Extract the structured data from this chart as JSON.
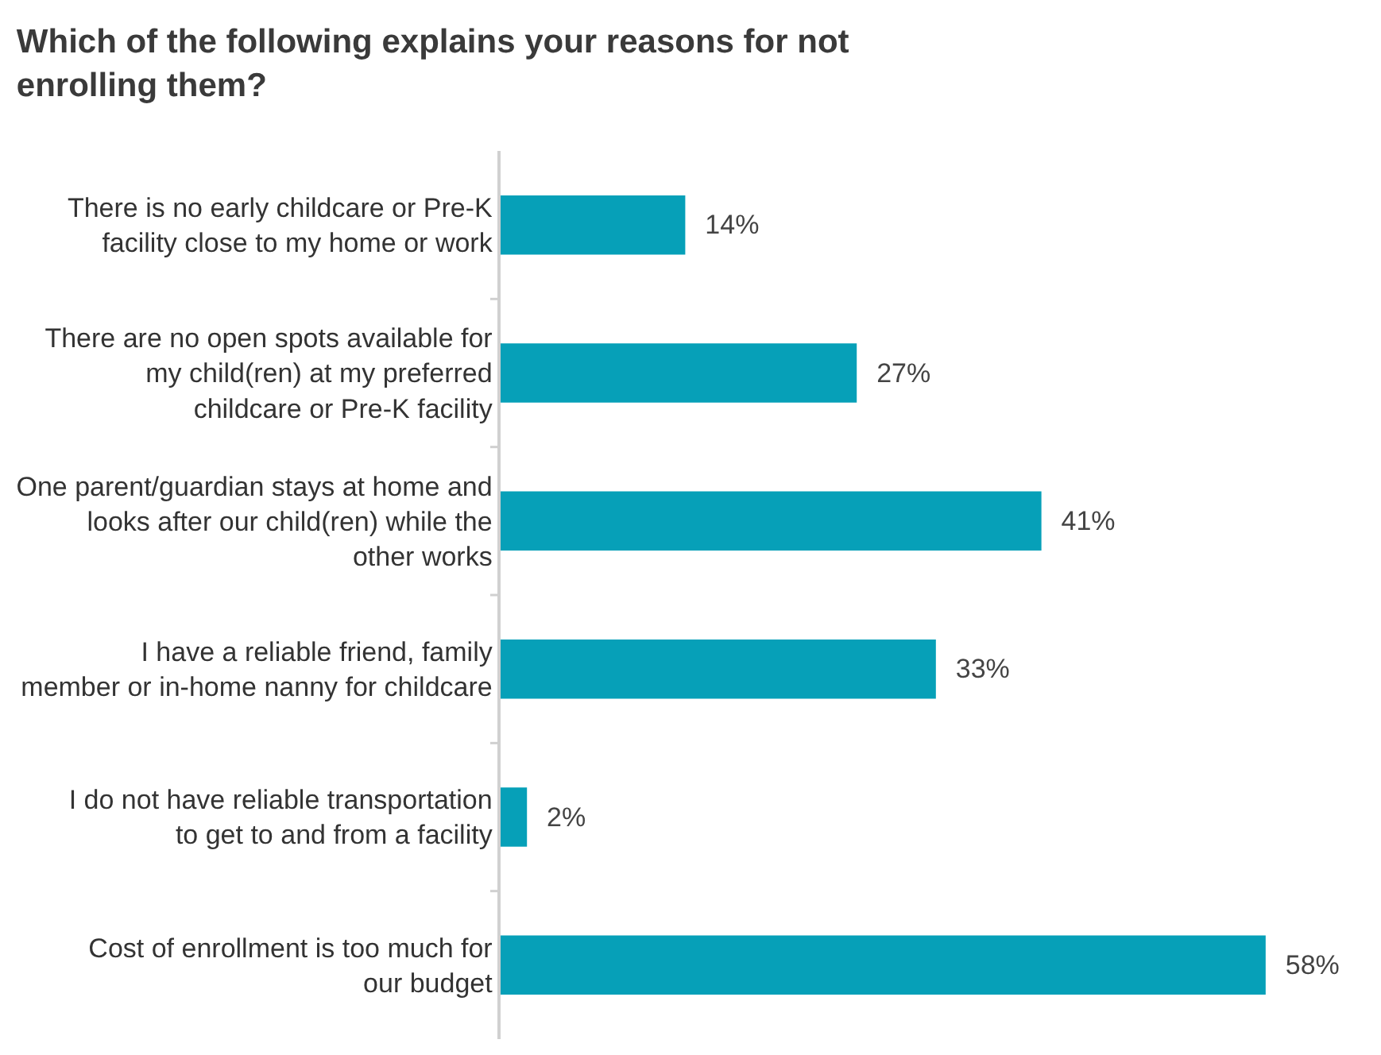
{
  "chart_data": {
    "type": "bar",
    "orientation": "horizontal",
    "title": "Which of the following explains your reasons for not enrolling them?",
    "categories": [
      "There is no early childcare or Pre-K facility close to my home or work",
      "There are no open spots available for my child(ren) at my preferred childcare or Pre-K facility",
      "One parent/guardian stays at home and looks after our child(ren) while the other works",
      "I have a reliable friend, family member or in-home nanny for childcare",
      "I do not have reliable transportation to get to and from a facility",
      "Cost of enrollment is too much for our budget"
    ],
    "values": [
      14,
      27,
      41,
      33,
      2,
      58
    ],
    "value_labels": [
      "14%",
      "27%",
      "41%",
      "33%",
      "2%",
      "58%"
    ],
    "color": "#06a0b8"
  }
}
